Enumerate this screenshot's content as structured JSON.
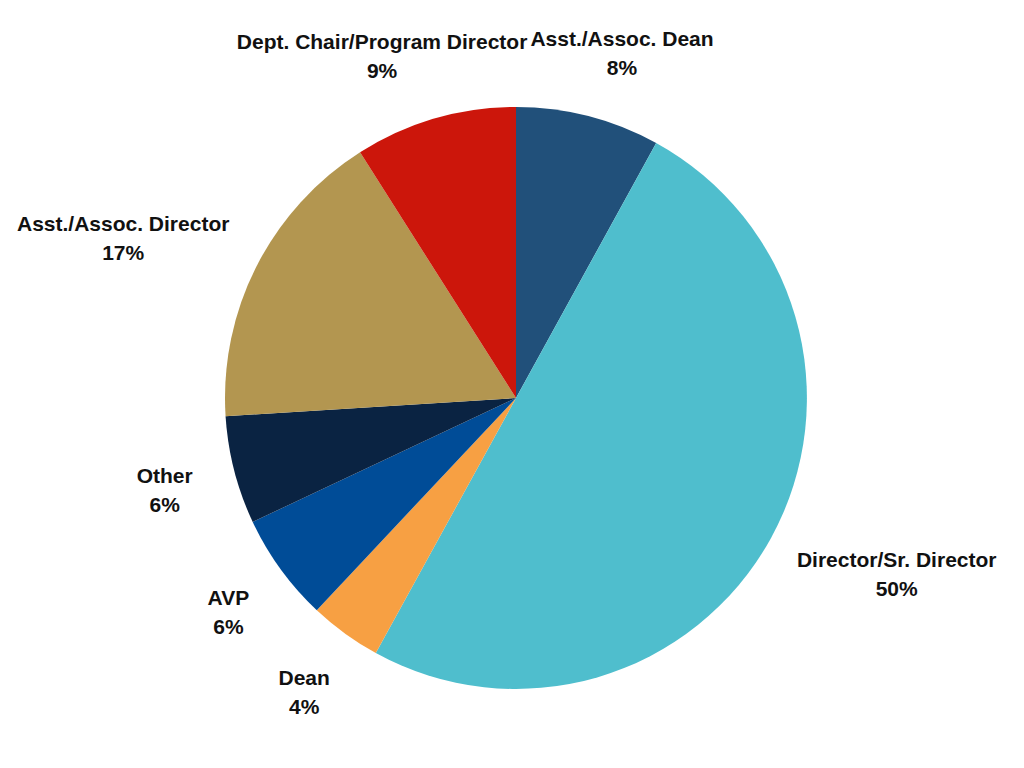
{
  "chart_data": {
    "type": "pie",
    "categories": [
      "Asst./Assoc. Dean",
      "Director/Sr. Director",
      "Dean",
      "AVP",
      "Other",
      "Asst./Assoc. Director",
      "Dept. Chair/Program Director"
    ],
    "values": [
      8,
      50,
      4,
      6,
      6,
      17,
      9
    ],
    "value_labels": [
      "8%",
      "50%",
      "4%",
      "6%",
      "6%",
      "17%",
      "9%"
    ],
    "colors": [
      "#21507a",
      "#4fbecd",
      "#f7a043",
      "#004c97",
      "#0a2342",
      "#b39650",
      "#cc160b"
    ],
    "data_labels": true
  }
}
